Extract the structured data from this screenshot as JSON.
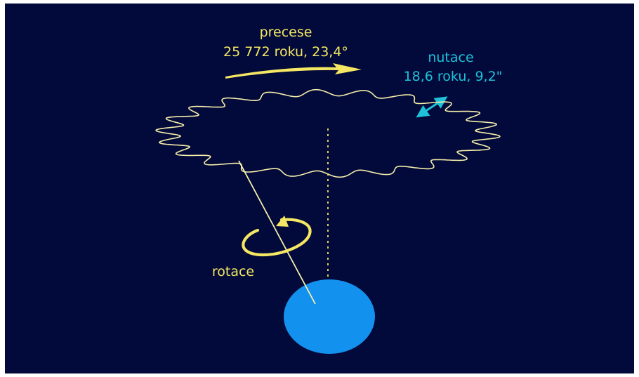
{
  "labels": {
    "precession_title": "precese",
    "precession_detail": "25 772 roku, 23,4°",
    "nutation_title": "nutace",
    "nutation_detail": "18,6 roku, 9,2\"",
    "rotation": "rotace"
  },
  "colors": {
    "background": "#010a3a",
    "frame": "#ffffff",
    "precession": "#f5e663",
    "nutation": "#1fc1d8",
    "rotation": "#f5e663",
    "curve": "#f7eeaa",
    "earth": "#1391ee"
  },
  "diagram": {
    "precession_period_years": 25772,
    "precession_angle_deg": 23.4,
    "nutation_period_years": 18.6,
    "nutation_amplitude_arcsec": 9.2
  }
}
